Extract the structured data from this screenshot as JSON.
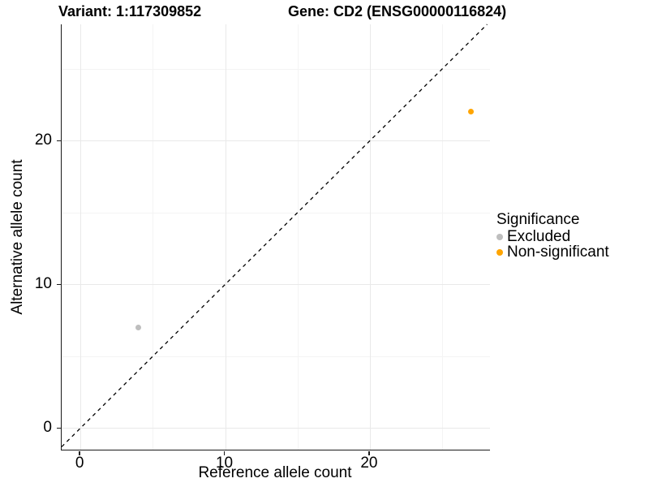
{
  "title": {
    "variant": "Variant: 1:117309852",
    "gene": "Gene: CD2 (ENSG00000116824)"
  },
  "colors": {
    "background": "#ffffff",
    "axis": "#1a1a1a",
    "grid_major": "#e9e9e9",
    "grid_minor": "#f4f4f4",
    "identity_line": "#000000",
    "excluded": "#bebebe",
    "non_significant": "#ffa500"
  },
  "chart_data": {
    "type": "scatter",
    "xlabel": "Reference allele count",
    "ylabel": "Alternative allele count",
    "xlim": [
      -1.3,
      28.3
    ],
    "ylim": [
      -1.5,
      28.1
    ],
    "x_major_ticks": [
      0,
      10,
      20
    ],
    "y_major_ticks": [
      0,
      10,
      20
    ],
    "x_minor_ticks": [
      5,
      15,
      25
    ],
    "y_minor_ticks": [
      5,
      15,
      25
    ],
    "grid": true,
    "identity_line": {
      "style": "dashed",
      "slope": 1,
      "intercept": 0
    },
    "series": [
      {
        "name": "Excluded",
        "color": "#bebebe",
        "points": [
          {
            "x": 4,
            "y": 7
          }
        ]
      },
      {
        "name": "Non-significant",
        "color": "#ffa500",
        "points": [
          {
            "x": 27,
            "y": 22
          }
        ]
      }
    ],
    "legend": {
      "title": "Significance",
      "position": "right",
      "entries": [
        {
          "label": "Excluded",
          "color": "#bebebe"
        },
        {
          "label": "Non-significant",
          "color": "#ffa500"
        }
      ]
    }
  }
}
